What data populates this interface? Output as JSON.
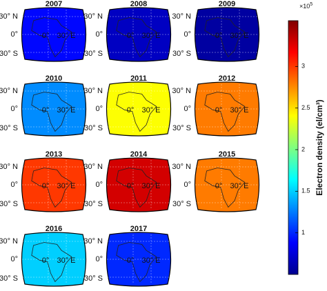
{
  "chart_data": {
    "type": "map-grid",
    "colorbar": {
      "label": "Electron density (el/cm³)",
      "multiplier": "×10",
      "exponent": "5",
      "clim": [
        0.5,
        3.55
      ],
      "ticks": [
        1,
        1.5,
        2,
        2.5,
        3
      ]
    },
    "map_labels": {
      "lat": [
        "30° N",
        "0°",
        "30° S"
      ],
      "lon": [
        "0°",
        "30° E"
      ]
    },
    "panels": [
      {
        "title": "2007",
        "value": 0.9
      },
      {
        "title": "2008",
        "value": 0.7
      },
      {
        "title": "2009",
        "value": 0.6
      },
      {
        "title": "2010",
        "value": 1.3
      },
      {
        "title": "2011",
        "value": 2.4
      },
      {
        "title": "2012",
        "value": 2.8
      },
      {
        "title": "2013",
        "value": 3.0
      },
      {
        "title": "2014",
        "value": 3.3
      },
      {
        "title": "2015",
        "value": 2.8
      },
      {
        "title": "2016",
        "value": 1.5
      },
      {
        "title": "2017",
        "value": 1.0
      }
    ]
  }
}
